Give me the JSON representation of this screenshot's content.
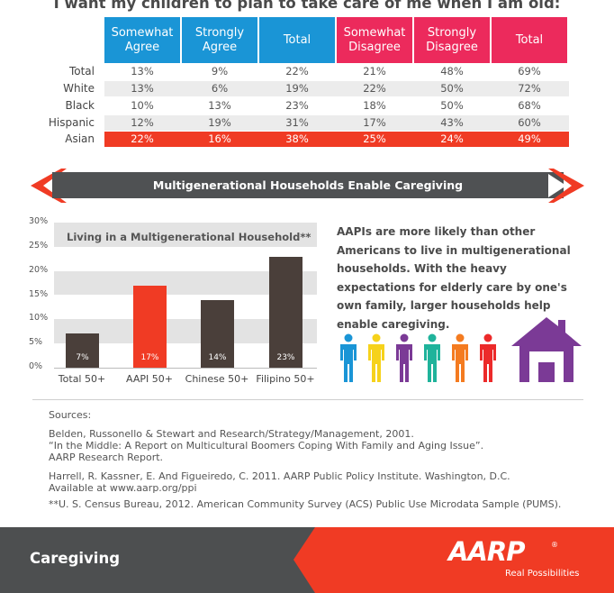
{
  "table": {
    "title": "I want my children to plan to take care of me when I am old:",
    "headers": [
      "Somewhat Agree",
      "Strongly Agree",
      "Total",
      "Somewhat Disagree",
      "Strongly Disagree",
      "Total"
    ],
    "header_colors": [
      "#1a95d6",
      "#ec2a5c"
    ],
    "rows": [
      {
        "label": "Total",
        "values": [
          "13%",
          "9%",
          "22%",
          "21%",
          "48%",
          "69%"
        ]
      },
      {
        "label": "White",
        "values": [
          "13%",
          "6%",
          "19%",
          "22%",
          "50%",
          "72%"
        ]
      },
      {
        "label": "Black",
        "values": [
          "10%",
          "13%",
          "23%",
          "18%",
          "50%",
          "68%"
        ]
      },
      {
        "label": "Hispanic",
        "values": [
          "12%",
          "19%",
          "31%",
          "17%",
          "43%",
          "60%"
        ]
      },
      {
        "label": "Asian",
        "values": [
          "22%",
          "16%",
          "38%",
          "25%",
          "24%",
          "49%"
        ]
      }
    ]
  },
  "banner": {
    "text": "Multigenerational Households Enable Caregiving"
  },
  "chart_data": {
    "type": "bar",
    "title": "Living in a Multigenerational Household**",
    "categories": [
      "Total 50+",
      "AAPI 50+",
      "Chinese 50+",
      "Filipino 50+"
    ],
    "values": [
      7,
      17,
      14,
      23
    ],
    "value_labels": [
      "7%",
      "17%",
      "14%",
      "23%"
    ],
    "yticks": [
      "0%",
      "5%",
      "10%",
      "15%",
      "20%",
      "25%",
      "30%"
    ],
    "ylim": [
      0,
      30
    ],
    "highlight_index": 1,
    "colors": {
      "default": "#4a3f3a",
      "highlight": "#f03b24"
    }
  },
  "side_text": "AAPIs are more likely than other Americans to live in multigenerational households. With the heavy expectations for elderly care by one's own family, larger households help enable caregiving.",
  "icons": {
    "people": [
      {
        "name": "person-icon",
        "color": "#1a95d6"
      },
      {
        "name": "person-icon",
        "color": "#f6d21b"
      },
      {
        "name": "person-icon",
        "color": "#7b3a96"
      },
      {
        "name": "person-icon",
        "color": "#1fb39b"
      },
      {
        "name": "person-icon",
        "color": "#f47b20"
      },
      {
        "name": "person-icon",
        "color": "#ec2a2a"
      }
    ],
    "house": {
      "name": "house-icon",
      "color": "#7b3a96"
    }
  },
  "sources": {
    "heading": "Sources:",
    "lines": [
      "Belden, Russonello & Stewart and Research/Strategy/Management, 2001.",
      "“In the Middle: A Report on Multicultural Boomers Coping With Family and Aging Issue”.",
      "AARP Research Report.",
      "Harrell, R. Kassner, E. And Figueiredo, C. 2011. AARP Public Policy Institute. Washington, D.C.",
      "Available at www.aarp.org/ppi",
      "**U. S. Census Bureau, 2012. American Community Survey (ACS) Public Use Microdata Sample (PUMS)."
    ]
  },
  "footer": {
    "section": "Caregiving",
    "logo": "AARP",
    "logo_mark": "®",
    "tagline": "Real Possibilities",
    "colors": {
      "dark": "#4d4f50",
      "red": "#f03b24"
    }
  }
}
